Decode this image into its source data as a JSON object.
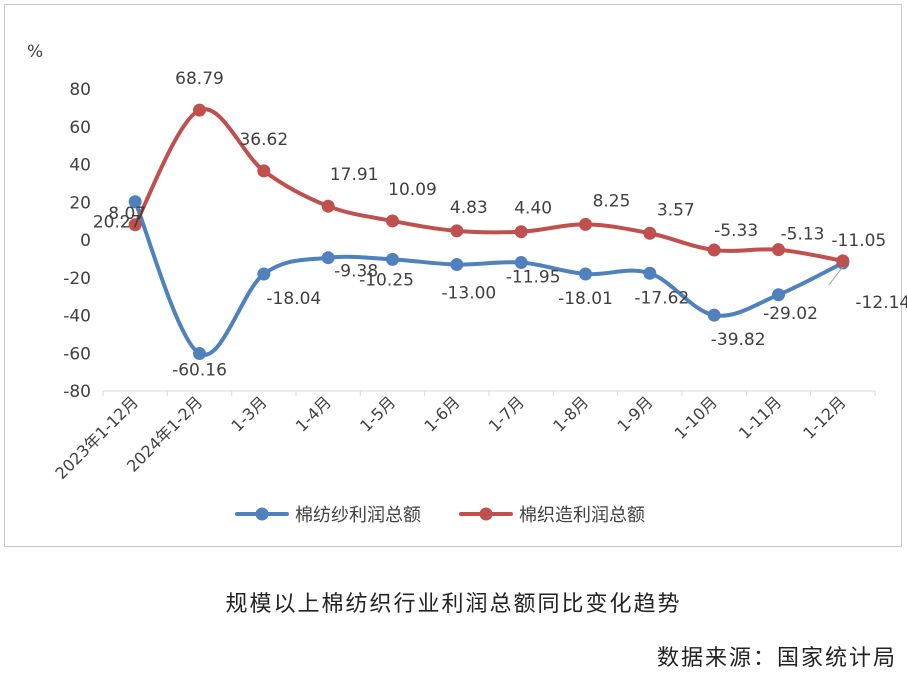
{
  "chart_data": {
    "type": "line",
    "ylabel": "%",
    "ylim": [
      -80,
      80
    ],
    "yticks": [
      80,
      60,
      40,
      20,
      0,
      -20,
      -40,
      -60,
      -80
    ],
    "grid": false,
    "legend_position": "bottom",
    "categories": [
      "2023年1-12月",
      "2024年1-2月",
      "1-3月",
      "1-4月",
      "1-5月",
      "1-6月",
      "1-7月",
      "1-8月",
      "1-9月",
      "1-10月",
      "1-11月",
      "1-12月"
    ],
    "series": [
      {
        "name": "棉纺纱利润总额",
        "color": "#4f81bd",
        "values": [
          20.27,
          -60.16,
          -18.04,
          -9.38,
          -10.25,
          -13.0,
          -11.95,
          -18.01,
          -17.62,
          -39.82,
          -29.02,
          -12.14
        ],
        "labels": [
          "20.27",
          "-60.16",
          "-18.04",
          "-9.38",
          "-10.25",
          "-13.00",
          "-11.95",
          "-18.01",
          "-17.62",
          "-39.82",
          "-29.02",
          "-12.14"
        ]
      },
      {
        "name": "棉织造利润总额",
        "color": "#c0504d",
        "values": [
          8.07,
          68.79,
          36.62,
          17.91,
          10.09,
          4.83,
          4.4,
          8.25,
          3.57,
          -5.33,
          -5.13,
          -11.05
        ],
        "labels": [
          "8.07",
          "68.79",
          "36.62",
          "17.91",
          "10.09",
          "4.83",
          "4.40",
          "8.25",
          "3.57",
          "-5.33",
          "-5.13",
          "-11.05"
        ]
      }
    ]
  },
  "caption": {
    "title": "规模以上棉纺织行业利润总额同比变化趋势",
    "source": "数据来源：国家统计局"
  }
}
